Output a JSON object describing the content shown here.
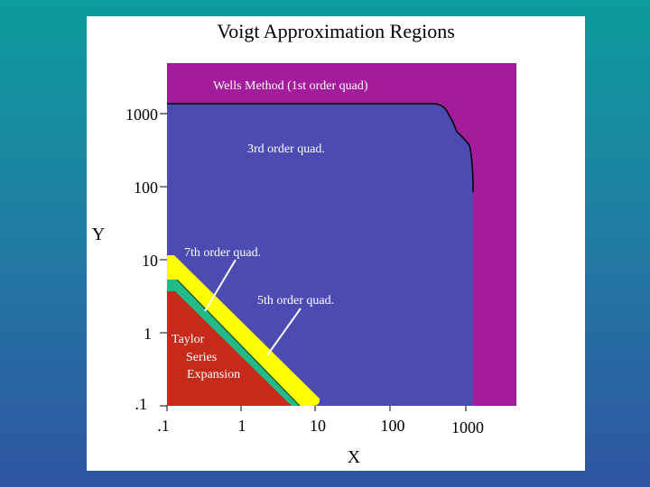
{
  "slide": {
    "title": "Voigt Approximation Regions"
  },
  "chart_data": {
    "type": "area",
    "title": "Voigt Approximation Regions",
    "xlabel": "X",
    "ylabel": "Y",
    "x_scale": "log",
    "y_scale": "log",
    "xlim": [
      0.1,
      5000
    ],
    "ylim": [
      0.1,
      5000
    ],
    "x_ticks": [
      ".1",
      "1",
      "10",
      "100",
      "1000"
    ],
    "y_ticks": [
      ".1",
      "1",
      "10",
      "100",
      "1000"
    ],
    "grid": false,
    "regions": [
      {
        "name": "Wells Method (1st order quad)",
        "color": "#a31c9b"
      },
      {
        "name": "3rd order quad.",
        "color": "#4c4bb2"
      },
      {
        "name": "7th order quad.",
        "color": "#ffff00"
      },
      {
        "name": "5th order quad.",
        "color": "#22bb88"
      },
      {
        "name": "Taylor Series Expansion",
        "color": "#c62a1a",
        "label_lines": [
          "Taylor",
          "Series",
          "Expansion"
        ]
      }
    ]
  }
}
